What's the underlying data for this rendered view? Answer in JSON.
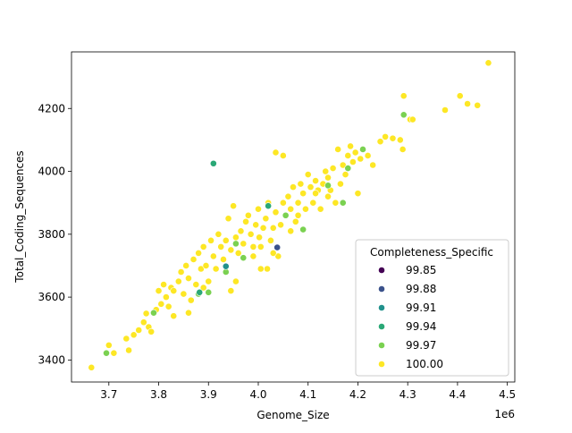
{
  "chart_data": {
    "type": "scatter",
    "xlabel": "Genome_Size",
    "ylabel": "Total_Coding_Sequences",
    "x_offset_label": "1e6",
    "xlim": [
      3.625,
      4.515
    ],
    "ylim": [
      3330,
      4380
    ],
    "x_ticks": [
      "3.7",
      "3.8",
      "3.9",
      "4.0",
      "4.1",
      "4.2",
      "4.3",
      "4.4",
      "4.5"
    ],
    "y_ticks": [
      "3400",
      "3600",
      "3800",
      "4000",
      "4200"
    ],
    "grid": false,
    "legend": {
      "title": "Completeness_Specific",
      "placement": "lower-right",
      "entries": [
        {
          "label": "99.85",
          "color": "#440154"
        },
        {
          "label": "99.88",
          "color": "#3b528b"
        },
        {
          "label": "99.91",
          "color": "#21918c"
        },
        {
          "label": "99.94",
          "color": "#2aa876"
        },
        {
          "label": "99.97",
          "color": "#7ad151"
        },
        {
          "label": "100.00",
          "color": "#fde725"
        }
      ]
    },
    "series": [
      {
        "name": "100.00",
        "color": "#fde725",
        "points": [
          [
            3.665,
            3376
          ],
          [
            3.7,
            3447
          ],
          [
            3.71,
            3422
          ],
          [
            3.735,
            3468
          ],
          [
            3.74,
            3431
          ],
          [
            3.75,
            3480
          ],
          [
            3.76,
            3495
          ],
          [
            3.77,
            3520
          ],
          [
            3.775,
            3548
          ],
          [
            3.78,
            3505
          ],
          [
            3.785,
            3490
          ],
          [
            3.795,
            3560
          ],
          [
            3.8,
            3620
          ],
          [
            3.805,
            3578
          ],
          [
            3.81,
            3640
          ],
          [
            3.815,
            3600
          ],
          [
            3.82,
            3570
          ],
          [
            3.825,
            3630
          ],
          [
            3.83,
            3540
          ],
          [
            3.84,
            3650
          ],
          [
            3.845,
            3680
          ],
          [
            3.85,
            3610
          ],
          [
            3.855,
            3700
          ],
          [
            3.86,
            3660
          ],
          [
            3.865,
            3590
          ],
          [
            3.87,
            3720
          ],
          [
            3.875,
            3640
          ],
          [
            3.88,
            3740
          ],
          [
            3.885,
            3690
          ],
          [
            3.89,
            3760
          ],
          [
            3.895,
            3700
          ],
          [
            3.9,
            3650
          ],
          [
            3.905,
            3780
          ],
          [
            3.91,
            3730
          ],
          [
            3.915,
            3690
          ],
          [
            3.92,
            3800
          ],
          [
            3.925,
            3760
          ],
          [
            3.93,
            3720
          ],
          [
            3.935,
            3780
          ],
          [
            3.94,
            3850
          ],
          [
            3.945,
            3750
          ],
          [
            3.95,
            3890
          ],
          [
            3.955,
            3790
          ],
          [
            3.96,
            3740
          ],
          [
            3.965,
            3810
          ],
          [
            3.97,
            3770
          ],
          [
            3.975,
            3840
          ],
          [
            3.98,
            3860
          ],
          [
            3.985,
            3800
          ],
          [
            3.99,
            3760
          ],
          [
            3.995,
            3830
          ],
          [
            4.0,
            3880
          ],
          [
            4.002,
            3790
          ],
          [
            4.005,
            3690
          ],
          [
            4.01,
            3820
          ],
          [
            4.015,
            3850
          ],
          [
            4.018,
            3690
          ],
          [
            4.02,
            3900
          ],
          [
            4.025,
            3780
          ],
          [
            4.03,
            3820
          ],
          [
            4.035,
            3870
          ],
          [
            4.035,
            4060
          ],
          [
            4.04,
            3730
          ],
          [
            4.045,
            3830
          ],
          [
            4.05,
            3900
          ],
          [
            4.05,
            4050
          ],
          [
            4.055,
            3860
          ],
          [
            4.06,
            3920
          ],
          [
            4.065,
            3880
          ],
          [
            4.07,
            3950
          ],
          [
            4.075,
            3840
          ],
          [
            4.08,
            3900
          ],
          [
            4.085,
            3960
          ],
          [
            4.09,
            3930
          ],
          [
            4.095,
            3880
          ],
          [
            4.1,
            3990
          ],
          [
            4.105,
            3950
          ],
          [
            4.11,
            3900
          ],
          [
            4.115,
            3970
          ],
          [
            4.12,
            3940
          ],
          [
            4.125,
            3880
          ],
          [
            4.13,
            3960
          ],
          [
            4.135,
            4000
          ],
          [
            4.14,
            3980
          ],
          [
            4.145,
            3940
          ],
          [
            4.15,
            4010
          ],
          [
            4.155,
            3900
          ],
          [
            4.16,
            4070
          ],
          [
            4.165,
            3960
          ],
          [
            4.17,
            4020
          ],
          [
            4.175,
            3990
          ],
          [
            4.18,
            4050
          ],
          [
            4.185,
            4080
          ],
          [
            4.19,
            4030
          ],
          [
            4.195,
            4060
          ],
          [
            4.2,
            3930
          ],
          [
            4.205,
            4040
          ],
          [
            4.21,
            4070
          ],
          [
            4.22,
            4050
          ],
          [
            4.23,
            4020
          ],
          [
            4.245,
            4095
          ],
          [
            4.255,
            4110
          ],
          [
            4.27,
            4105
          ],
          [
            4.285,
            4100
          ],
          [
            4.29,
            4070
          ],
          [
            4.292,
            4240
          ],
          [
            4.305,
            4165
          ],
          [
            4.31,
            4165
          ],
          [
            4.375,
            4195
          ],
          [
            4.405,
            4240
          ],
          [
            4.42,
            4215
          ],
          [
            4.44,
            4210
          ],
          [
            4.462,
            4345
          ],
          [
            3.83,
            3620
          ],
          [
            3.86,
            3550
          ],
          [
            3.89,
            3630
          ],
          [
            3.945,
            3620
          ],
          [
            3.955,
            3650
          ],
          [
            3.99,
            3730
          ],
          [
            4.005,
            3760
          ],
          [
            4.03,
            3740
          ],
          [
            4.065,
            3810
          ],
          [
            4.08,
            3860
          ],
          [
            4.115,
            3930
          ],
          [
            4.14,
            3920
          ]
        ]
      },
      {
        "name": "99.97",
        "color": "#7ad151",
        "points": [
          [
            3.695,
            3422
          ],
          [
            3.79,
            3550
          ],
          [
            3.88,
            3610
          ],
          [
            3.9,
            3615
          ],
          [
            3.935,
            3680
          ],
          [
            3.955,
            3770
          ],
          [
            3.97,
            3725
          ],
          [
            4.055,
            3860
          ],
          [
            4.09,
            3815
          ],
          [
            4.14,
            3955
          ],
          [
            4.17,
            3900
          ],
          [
            4.18,
            4010
          ],
          [
            4.21,
            4070
          ],
          [
            4.292,
            4180
          ]
        ]
      },
      {
        "name": "99.94",
        "color": "#2aa876",
        "points": [
          [
            3.91,
            4025
          ],
          [
            3.882,
            3615
          ],
          [
            4.02,
            3890
          ]
        ]
      },
      {
        "name": "99.91",
        "color": "#21918c",
        "points": [
          [
            3.935,
            3698
          ]
        ]
      },
      {
        "name": "99.88",
        "color": "#3b528b",
        "points": [
          [
            4.038,
            3758
          ]
        ]
      }
    ]
  }
}
